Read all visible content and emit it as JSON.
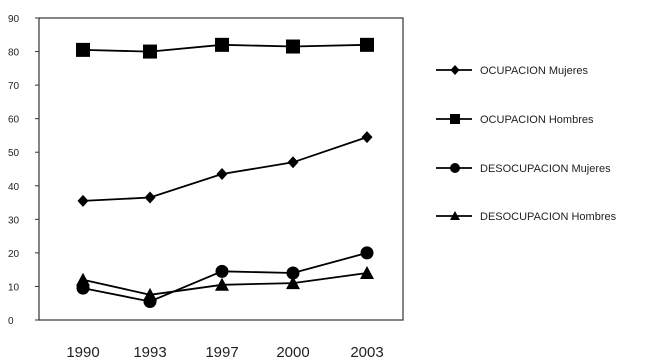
{
  "chart_data": {
    "type": "line",
    "title": "",
    "xlabel": "",
    "ylabel": "",
    "x": [
      "1990",
      "1993",
      "1997",
      "2000",
      "2003"
    ],
    "ylim": [
      0,
      90
    ],
    "yticks": [
      0,
      10,
      20,
      30,
      40,
      50,
      60,
      70,
      80,
      90
    ],
    "grid": false,
    "legend_position": "right",
    "series": [
      {
        "name": "OCUPACION Mujeres",
        "marker": "diamond",
        "color": "#000000",
        "values": [
          35.5,
          36.5,
          43.5,
          47,
          54.5
        ]
      },
      {
        "name": "OCUPACION Hombres",
        "marker": "square",
        "color": "#000000",
        "values": [
          80.5,
          80,
          82,
          81.5,
          82
        ]
      },
      {
        "name": "DESOCUPACION Mujeres",
        "marker": "circle",
        "color": "#000000",
        "values": [
          9.5,
          5.5,
          14.5,
          14,
          20
        ]
      },
      {
        "name": "DESOCUPACION Hombres",
        "marker": "triangle",
        "color": "#000000",
        "values": [
          12,
          7.5,
          10.5,
          11,
          14
        ]
      }
    ]
  }
}
